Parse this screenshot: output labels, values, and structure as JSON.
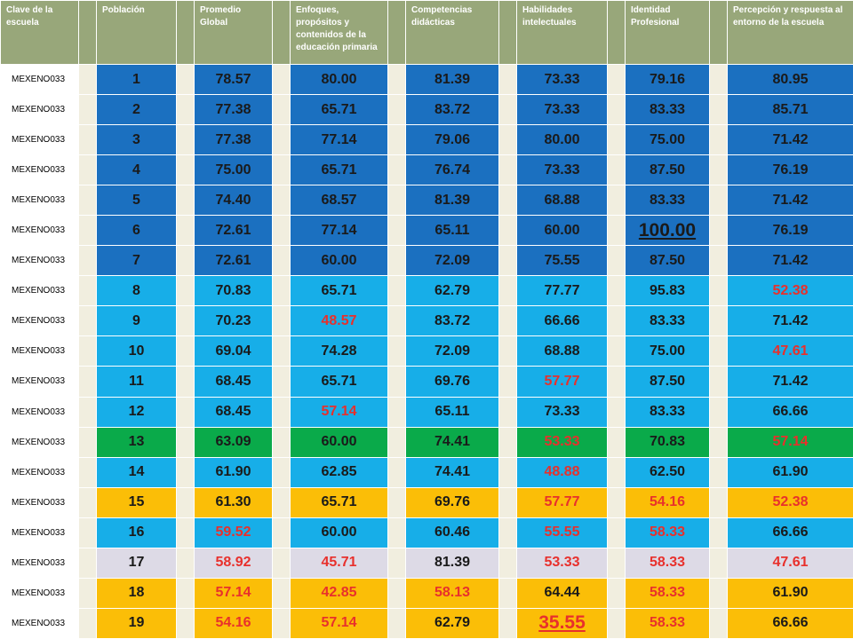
{
  "colors": {
    "header_bg": "#98a77a",
    "spacer": "#f1eedf",
    "dark_blue": "#1b70c0",
    "light_blue": "#17aee8",
    "green": "#0aaa4a",
    "orange": "#fbbe07",
    "lavender": "#dddae6",
    "red_text": "#e8302c"
  },
  "headers": [
    "Clave de la escuela",
    "Población",
    "Promedio Global",
    "Enfoques, propósitos y contenidos de la educación primaria",
    "Competencias didácticas",
    "Habilidades intelectuales",
    "Identidad Profesional",
    "Percepción y respuesta al entorno de la escuela"
  ],
  "rows": [
    {
      "clave": "MEXENO033",
      "pos": "1",
      "prom": "78.57",
      "enf": "80.00",
      "comp": "81.39",
      "hab": "73.33",
      "iden": "79.16",
      "perc": "80.95",
      "bg": "dark_blue",
      "red": [],
      "big": []
    },
    {
      "clave": "MEXENO033",
      "pos": "2",
      "prom": "77.38",
      "enf": "65.71",
      "comp": "83.72",
      "hab": "73.33",
      "iden": "83.33",
      "perc": "85.71",
      "bg": "dark_blue",
      "red": [],
      "big": []
    },
    {
      "clave": "MEXENO033",
      "pos": "3",
      "prom": "77.38",
      "enf": "77.14",
      "comp": "79.06",
      "hab": "80.00",
      "iden": "75.00",
      "perc": "71.42",
      "bg": "dark_blue",
      "red": [],
      "big": []
    },
    {
      "clave": "MEXENO033",
      "pos": "4",
      "prom": "75.00",
      "enf": "65.71",
      "comp": "76.74",
      "hab": "73.33",
      "iden": "87.50",
      "perc": "76.19",
      "bg": "dark_blue",
      "red": [],
      "big": []
    },
    {
      "clave": "MEXENO033",
      "pos": "5",
      "prom": "74.40",
      "enf": "68.57",
      "comp": "81.39",
      "hab": "68.88",
      "iden": "83.33",
      "perc": "71.42",
      "bg": "dark_blue",
      "red": [],
      "big": []
    },
    {
      "clave": "MEXENO033",
      "pos": "6",
      "prom": "72.61",
      "enf": "77.14",
      "comp": "65.11",
      "hab": "60.00",
      "iden": "100.00",
      "perc": "76.19",
      "bg": "dark_blue",
      "red": [],
      "big": [
        "iden"
      ]
    },
    {
      "clave": "MEXENO033",
      "pos": "7",
      "prom": "72.61",
      "enf": "60.00",
      "comp": "72.09",
      "hab": "75.55",
      "iden": "87.50",
      "perc": "71.42",
      "bg": "dark_blue",
      "red": [],
      "big": []
    },
    {
      "clave": "MEXENO033",
      "pos": "8",
      "prom": "70.83",
      "enf": "65.71",
      "comp": "62.79",
      "hab": "77.77",
      "iden": "95.83",
      "perc": "52.38",
      "bg": "light_blue",
      "red": [
        "perc"
      ],
      "big": []
    },
    {
      "clave": "MEXENO033",
      "pos": "9",
      "prom": "70.23",
      "enf": "48.57",
      "comp": "83.72",
      "hab": "66.66",
      "iden": "83.33",
      "perc": "71.42",
      "bg": "light_blue",
      "red": [
        "enf"
      ],
      "big": []
    },
    {
      "clave": "MEXENO033",
      "pos": "10",
      "prom": "69.04",
      "enf": "74.28",
      "comp": "72.09",
      "hab": "68.88",
      "iden": "75.00",
      "perc": "47.61",
      "bg": "light_blue",
      "red": [
        "perc"
      ],
      "big": []
    },
    {
      "clave": "MEXENO033",
      "pos": "11",
      "prom": "68.45",
      "enf": "65.71",
      "comp": "69.76",
      "hab": "57.77",
      "iden": "87.50",
      "perc": "71.42",
      "bg": "light_blue",
      "red": [
        "hab"
      ],
      "big": []
    },
    {
      "clave": "MEXENO033",
      "pos": "12",
      "prom": "68.45",
      "enf": "57.14",
      "comp": "65.11",
      "hab": "73.33",
      "iden": "83.33",
      "perc": "66.66",
      "bg": "light_blue",
      "red": [
        "enf"
      ],
      "big": []
    },
    {
      "clave": "MEXENO033",
      "pos": "13",
      "prom": "63.09",
      "enf": "60.00",
      "comp": "74.41",
      "hab": "53.33",
      "iden": "70.83",
      "perc": "57.14",
      "bg": "green",
      "red": [
        "hab",
        "perc"
      ],
      "big": []
    },
    {
      "clave": "MEXENO033",
      "pos": "14",
      "prom": "61.90",
      "enf": "62.85",
      "comp": "74.41",
      "hab": "48.88",
      "iden": "62.50",
      "perc": "61.90",
      "bg": "light_blue",
      "red": [
        "hab"
      ],
      "big": []
    },
    {
      "clave": "MEXENO033",
      "pos": "15",
      "prom": "61.30",
      "enf": "65.71",
      "comp": "69.76",
      "hab": "57.77",
      "iden": "54.16",
      "perc": "52.38",
      "bg": "orange",
      "red": [
        "hab",
        "iden",
        "perc"
      ],
      "big": []
    },
    {
      "clave": "MEXENO033",
      "pos": "16",
      "prom": "59.52",
      "enf": "60.00",
      "comp": "60.46",
      "hab": "55.55",
      "iden": "58.33",
      "perc": "66.66",
      "bg": "light_blue",
      "red": [
        "prom",
        "hab",
        "iden"
      ],
      "big": []
    },
    {
      "clave": "MEXENO033",
      "pos": "17",
      "prom": "58.92",
      "enf": "45.71",
      "comp": "81.39",
      "hab": "53.33",
      "iden": "58.33",
      "perc": "47.61",
      "bg": "lavender",
      "red": [
        "prom",
        "enf",
        "hab",
        "iden",
        "perc"
      ],
      "big": []
    },
    {
      "clave": "MEXENO033",
      "pos": "18",
      "prom": "57.14",
      "enf": "42.85",
      "comp": "58.13",
      "hab": "64.44",
      "iden": "58.33",
      "perc": "61.90",
      "bg": "orange",
      "red": [
        "prom",
        "enf",
        "comp",
        "iden"
      ],
      "big": []
    },
    {
      "clave": "MEXENO033",
      "pos": "19",
      "prom": "54.16",
      "enf": "57.14",
      "comp": "62.79",
      "hab": "35.55",
      "iden": "58.33",
      "perc": "66.66",
      "bg": "orange",
      "red": [
        "prom",
        "enf",
        "hab",
        "iden"
      ],
      "big": [
        "hab"
      ]
    }
  ]
}
